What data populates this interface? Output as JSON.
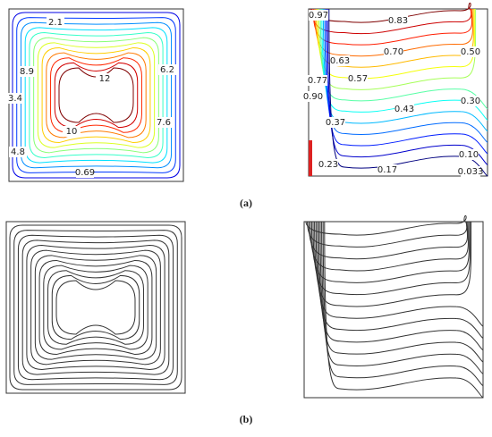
{
  "figure": {
    "panel_a": {
      "caption": "(a)",
      "streamline_labels": [
        "2.1",
        "8.9",
        "12",
        "6.2",
        "3.4",
        "7.6",
        "10",
        "4.8",
        "0.69"
      ],
      "isotherm_labels": [
        "0.97",
        "0.83",
        "0.70",
        "0.50",
        "0.63",
        "0.77",
        "0.57",
        "0.90",
        "0.43",
        "0.30",
        "0.37",
        "0.23",
        "0.17",
        "0.10",
        "0.033"
      ]
    },
    "panel_b": {
      "caption": "(b)"
    }
  }
}
